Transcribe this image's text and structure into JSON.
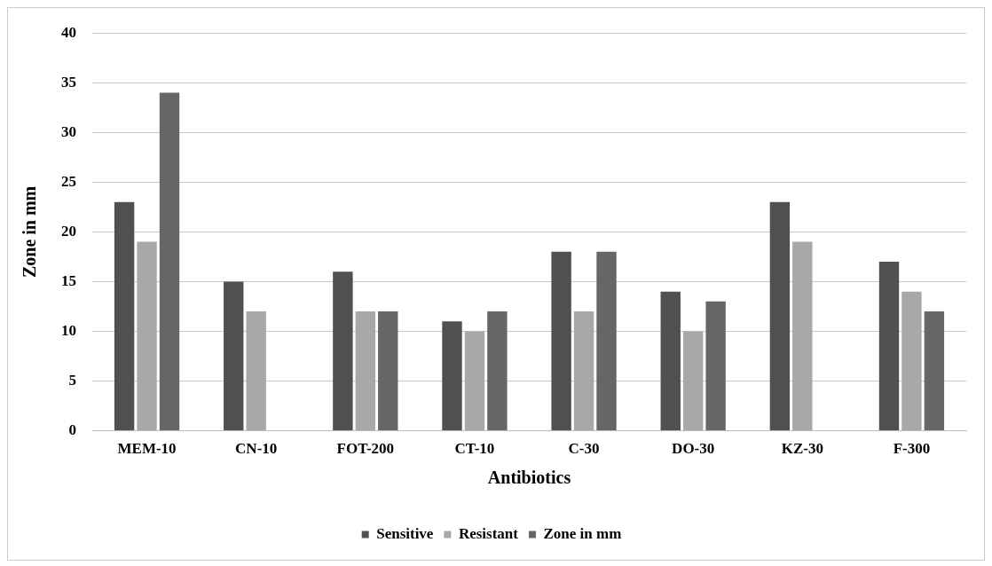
{
  "chart_data": {
    "type": "bar",
    "xlabel": "Antibiotics",
    "ylabel": "Zone in mm",
    "categories": [
      "MEM-10",
      "CN-10",
      "FOT-200",
      "CT-10",
      "C-30",
      "DO-30",
      "KZ-30",
      "F-300"
    ],
    "series": [
      {
        "name": "Sensitive",
        "color": "#505050",
        "values": [
          23,
          15,
          16,
          11,
          18,
          14,
          23,
          17
        ]
      },
      {
        "name": "Resistant",
        "color": "#a8a8a8",
        "values": [
          19,
          12,
          12,
          10,
          12,
          10,
          19,
          14
        ]
      },
      {
        "name": "Zone in mm",
        "color": "#666666",
        "values": [
          34,
          null,
          12,
          12,
          18,
          13,
          null,
          12
        ]
      }
    ],
    "ylim": [
      0,
      40
    ],
    "yticks": [
      0,
      5,
      10,
      15,
      20,
      25,
      30,
      35,
      40
    ],
    "grid": "y",
    "legend": "bottom"
  }
}
